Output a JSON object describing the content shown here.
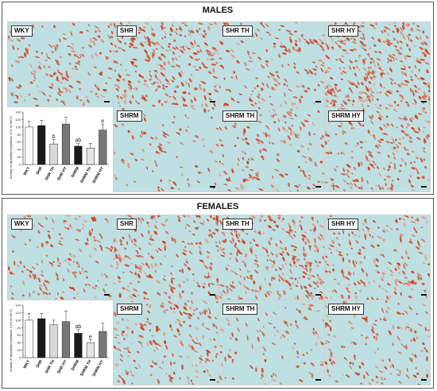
{
  "males": {
    "title": "MALES",
    "panels": [
      "WKY",
      "SHR",
      "SHR TH",
      "SHR HY",
      "SHRM",
      "SHRM TH",
      "SHRM HY"
    ],
    "chart": {
      "ylabel": "Activity of dipeptidyl peptidase 4 (% of WKY)",
      "yticks": [
        "0",
        "20",
        "40",
        "60",
        "80",
        "100",
        "120",
        "140"
      ],
      "categories": [
        "WKY",
        "SHR",
        "SHR TH",
        "SHR HY",
        "SHRM",
        "SHRM TH",
        "SHRM HY"
      ],
      "values": [
        100,
        104,
        55,
        108,
        49,
        44,
        92
      ],
      "errors": [
        15,
        14,
        12,
        18,
        8,
        12,
        16
      ],
      "sig": [
        "",
        "",
        "b",
        "",
        "ab",
        "",
        "e"
      ],
      "colors": [
        "#ffffff",
        "#1a1a1a",
        "#d9d9d9",
        "#777777",
        "#1a1a1a",
        "#e6e6e6",
        "#777777"
      ]
    }
  },
  "females": {
    "title": "FEMALES",
    "panels": [
      "WKY",
      "SHR",
      "SHR TH",
      "SHR HY",
      "SHRM",
      "SHRM TH",
      "SHRM HY"
    ],
    "chart": {
      "ylabel": "Activity of dipeptidyl peptidase 4 (% of WKY)",
      "yticks": [
        "0",
        "20",
        "40",
        "60",
        "80",
        "100",
        "120",
        "140"
      ],
      "categories": [
        "WKY",
        "SHR",
        "SHR TH",
        "SHR HY",
        "SHRM",
        "SHRM TH",
        "SHRM HY"
      ],
      "values": [
        100,
        104,
        88,
        96,
        65,
        40,
        70
      ],
      "errors": [
        18,
        14,
        12,
        28,
        10,
        8,
        22
      ],
      "sig": [
        "",
        "",
        "",
        "",
        "ab",
        "e",
        ""
      ],
      "colors": [
        "#ffffff",
        "#1a1a1a",
        "#d9d9d9",
        "#777777",
        "#1a1a1a",
        "#e6e6e6",
        "#777777"
      ]
    }
  },
  "colors": {
    "tissue_bg": "#bfe0e2",
    "stain": "#d2401c",
    "stain_light": "#e38a6e"
  }
}
